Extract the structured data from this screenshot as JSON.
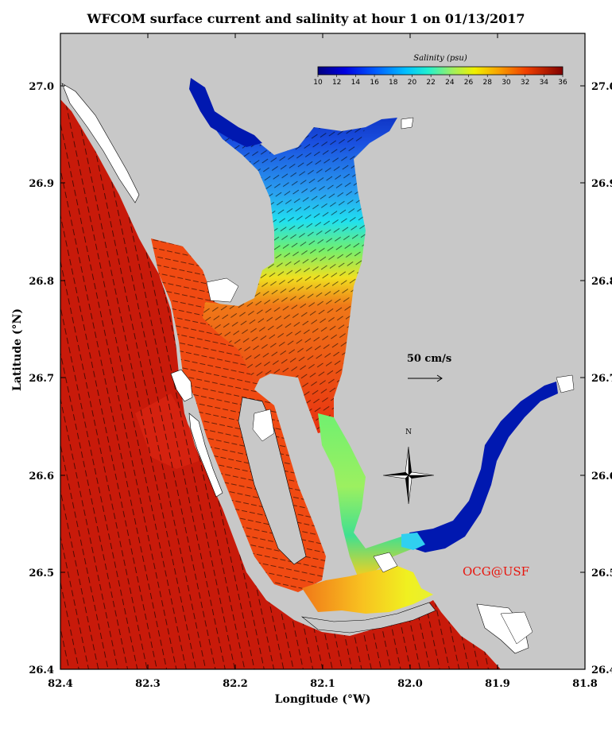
{
  "title": "WFCOM surface current and salinity at hour 1 on 01/13/2017",
  "x_axis": {
    "label": "Longitude (°W)",
    "ticks": [
      "82.4",
      "82.3",
      "82.2",
      "82.1",
      "82.0",
      "81.9",
      "81.8"
    ]
  },
  "y_axis": {
    "label": "Latitude (°N)",
    "ticks": [
      "27.0",
      "26.9",
      "26.8",
      "26.7",
      "26.6",
      "26.5",
      "26.4"
    ]
  },
  "colorbar": {
    "title": "Salinity (psu)",
    "ticks": [
      "10",
      "12",
      "14",
      "16",
      "18",
      "20",
      "22",
      "24",
      "26",
      "28",
      "30",
      "32",
      "34",
      "36"
    ]
  },
  "scale_vector": {
    "label": "50 cm/s"
  },
  "compass": {
    "label": "N"
  },
  "credit": "OCG@USF",
  "colors": {
    "land": "#c8c8c8",
    "gulf": "#c81a0a",
    "sound": "#f04a12",
    "credit": "#e8140c"
  }
}
